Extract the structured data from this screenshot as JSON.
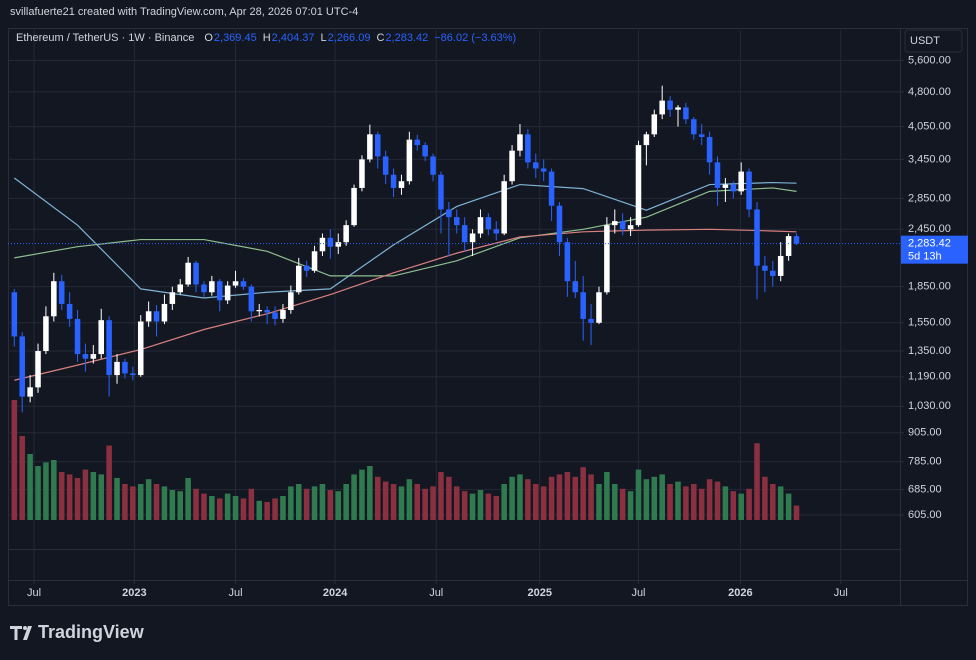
{
  "header": {
    "credit": "svillafuerte21 created with TradingView.com, Apr 28, 2026 07:01 UTC-4",
    "symbol": "Ethereum / TetherUS · 1W · Binance",
    "ohlc": [
      {
        "key": "O",
        "label": "2,369.45"
      },
      {
        "key": "H",
        "label": "2,404.37"
      },
      {
        "key": "L",
        "label": "2,266.09"
      },
      {
        "key": "C",
        "label": "2,283.42"
      }
    ],
    "change": "−86.02 (−3.63%)",
    "currency": "USDT"
  },
  "footer": {
    "logo": "TradingView"
  },
  "chart_data": {
    "type": "candlestick",
    "log_scale": true,
    "grid": true,
    "up_color": "#ffffff",
    "down_color": "#2962ff",
    "volume_up_color": "#2f7a4e",
    "volume_down_color": "#8a3040",
    "xlim": [
      -0.8,
      112.1
    ],
    "ylim": [
      440,
      6500
    ],
    "xticks": [
      {
        "value": 2.5,
        "label": "Jul"
      },
      {
        "value": 15.2,
        "label": "2023"
      },
      {
        "value": 28,
        "label": "Jul"
      },
      {
        "value": 40.6,
        "label": "2024"
      },
      {
        "value": 53.4,
        "label": "Jul"
      },
      {
        "value": 66.5,
        "label": "2025"
      },
      {
        "value": 79,
        "label": "Jul"
      },
      {
        "value": 91.9,
        "label": "2026"
      },
      {
        "value": 104.6,
        "label": "Jul"
      }
    ],
    "yticks": [
      {
        "value": 5600,
        "label": "5,600.00"
      },
      {
        "value": 4800,
        "label": "4,800.00"
      },
      {
        "value": 4050,
        "label": "4,050.00"
      },
      {
        "value": 3450,
        "label": "3,450.00"
      },
      {
        "value": 2850,
        "label": "2,850.00"
      },
      {
        "value": 2450,
        "label": "2,450.00"
      },
      {
        "value": 1850,
        "label": "1,850.00"
      },
      {
        "value": 1550,
        "label": "1,550.00"
      },
      {
        "value": 1350,
        "label": "1,350.00"
      },
      {
        "value": 1190,
        "label": "1,190.00"
      },
      {
        "value": 1030,
        "label": "1,030.00"
      },
      {
        "value": 905,
        "label": "905.00"
      },
      {
        "value": 785,
        "label": "785.00"
      },
      {
        "value": 685,
        "label": "685.00"
      },
      {
        "value": 605,
        "label": "605.00"
      }
    ],
    "price_marker": {
      "value": 2283.42,
      "label": "2,283.42",
      "countdown": "5d 13h",
      "color": "#2962ff"
    },
    "open": [
      1800,
      1450,
      1080,
      1130,
      1350,
      1600,
      1900,
      1700,
      1580,
      1330,
      1300,
      1330,
      1570,
      1200,
      1280,
      1210,
      1200,
      1560,
      1640,
      1560,
      1700,
      1800,
      1870,
      2080,
      1870,
      1800,
      1900,
      1730,
      1860,
      1900,
      1850,
      1640,
      1650,
      1630,
      1580,
      1650,
      1800,
      2050,
      2000,
      2200,
      2350,
      2250,
      2300,
      2500,
      3000,
      3450,
      3900,
      3500,
      3200,
      3000,
      3100,
      3800,
      3700,
      3500,
      3200,
      2700,
      2600,
      2500,
      2300,
      2400,
      2600,
      2450,
      2400,
      3100,
      3600,
      3900,
      3400,
      3300,
      3250,
      2750,
      2300,
      1900,
      1800,
      1580,
      1550,
      1800,
      2500,
      2550,
      2450,
      2500,
      3700,
      3900,
      4300,
      4600,
      4400,
      4450,
      4200,
      3900,
      3850,
      3400,
      3000,
      3050,
      2950,
      3250,
      2700,
      2050,
      2000,
      1950,
      2150,
      2369.45
    ],
    "high": [
      1830,
      1480,
      1200,
      1400,
      1680,
      1980,
      1960,
      1800,
      1650,
      1400,
      1390,
      1660,
      1600,
      1330,
      1300,
      1250,
      1610,
      1720,
      1690,
      1780,
      1850,
      1920,
      2140,
      2100,
      1900,
      1950,
      1920,
      1900,
      2000,
      1930,
      1870,
      1700,
      1680,
      1680,
      1700,
      1860,
      2130,
      2100,
      2260,
      2400,
      2450,
      2400,
      2560,
      3050,
      3520,
      4090,
      3950,
      3600,
      3300,
      3200,
      3950,
      3890,
      3750,
      3550,
      3250,
      2800,
      2700,
      2600,
      2450,
      2700,
      2650,
      2550,
      3200,
      3700,
      4100,
      4000,
      3550,
      3450,
      3300,
      2800,
      2350,
      2100,
      1950,
      1700,
      1850,
      2600,
      2700,
      2650,
      2600,
      3780,
      3950,
      4400,
      4950,
      4700,
      4500,
      4550,
      4250,
      4100,
      3950,
      3500,
      3150,
      3100,
      3400,
      3300,
      2800,
      2150,
      2100,
      2300,
      2400,
      2404.37
    ],
    "low": [
      1380,
      1000,
      1050,
      1100,
      1330,
      1560,
      1650,
      1520,
      1280,
      1220,
      1270,
      1300,
      1080,
      1150,
      1180,
      1170,
      1190,
      1520,
      1450,
      1540,
      1650,
      1780,
      1850,
      1800,
      1760,
      1770,
      1640,
      1700,
      1840,
      1820,
      1560,
      1600,
      1540,
      1530,
      1550,
      1620,
      1780,
      1940,
      1980,
      2150,
      2120,
      2170,
      2260,
      2480,
      2950,
      3400,
      3300,
      3060,
      2870,
      2900,
      3050,
      3600,
      3420,
      3100,
      2400,
      2150,
      2400,
      2200,
      2150,
      2350,
      2380,
      2320,
      2380,
      3050,
      3500,
      3300,
      3150,
      3100,
      2550,
      2150,
      1760,
      1750,
      1420,
      1390,
      1540,
      1780,
      2400,
      2380,
      2370,
      2480,
      3350,
      3850,
      4200,
      4250,
      4050,
      4100,
      3800,
      3700,
      3200,
      2750,
      2800,
      2850,
      2900,
      2600,
      1740,
      1800,
      1850,
      1900,
      2100,
      2266.09
    ],
    "close": [
      1450,
      1080,
      1130,
      1350,
      1600,
      1900,
      1700,
      1580,
      1330,
      1300,
      1330,
      1570,
      1200,
      1280,
      1210,
      1200,
      1560,
      1640,
      1560,
      1700,
      1800,
      1870,
      2080,
      1870,
      1800,
      1900,
      1730,
      1860,
      1900,
      1850,
      1640,
      1650,
      1630,
      1580,
      1650,
      1800,
      2050,
      2000,
      2200,
      2350,
      2250,
      2300,
      2500,
      3000,
      3450,
      3900,
      3500,
      3200,
      3000,
      3100,
      3800,
      3700,
      3500,
      3200,
      2700,
      2600,
      2500,
      2300,
      2400,
      2600,
      2450,
      2400,
      3100,
      3600,
      3900,
      3400,
      3300,
      3250,
      2750,
      2300,
      1900,
      1800,
      1580,
      1550,
      1800,
      2500,
      2550,
      2450,
      2500,
      3700,
      3900,
      4300,
      4600,
      4400,
      4450,
      4200,
      3900,
      3850,
      3400,
      3000,
      3050,
      2950,
      3250,
      2700,
      2050,
      2000,
      1950,
      2150,
      2369.45,
      2283.42
    ],
    "volume": [
      100,
      70,
      55,
      45,
      48,
      50,
      40,
      38,
      35,
      42,
      40,
      38,
      62,
      35,
      30,
      28,
      30,
      34,
      30,
      28,
      25,
      24,
      35,
      26,
      22,
      20,
      18,
      22,
      20,
      18,
      26,
      16,
      15,
      18,
      20,
      28,
      30,
      26,
      28,
      30,
      25,
      24,
      30,
      38,
      42,
      45,
      36,
      32,
      30,
      28,
      34,
      30,
      26,
      28,
      40,
      36,
      28,
      24,
      22,
      25,
      22,
      20,
      30,
      36,
      38,
      34,
      30,
      28,
      36,
      38,
      40,
      36,
      44,
      38,
      30,
      40,
      30,
      26,
      24,
      42,
      34,
      36,
      38,
      30,
      32,
      28,
      30,
      26,
      34,
      32,
      28,
      24,
      22,
      26,
      64,
      36,
      30,
      28,
      22,
      12
    ],
    "averages": [
      {
        "color": "#7fb3d5",
        "x": [
          0,
          8,
          16,
          24,
          32,
          40,
          48,
          56,
          64,
          72,
          80,
          88,
          96,
          99
        ],
        "values": [
          3150,
          2500,
          1830,
          1750,
          1800,
          1830,
          2270,
          2740,
          3050,
          2990,
          2690,
          3050,
          3080,
          3070
        ]
      },
      {
        "color": "#8fbf8f",
        "x": [
          0,
          8,
          16,
          24,
          32,
          40,
          48,
          56,
          64,
          72,
          80,
          88,
          96,
          99
        ],
        "values": [
          2130,
          2250,
          2330,
          2330,
          2200,
          1950,
          1950,
          2100,
          2350,
          2450,
          2600,
          2950,
          3000,
          2950
        ]
      },
      {
        "color": "#d9817f",
        "x": [
          0,
          8,
          16,
          24,
          32,
          40,
          48,
          56,
          64,
          72,
          80,
          88,
          96,
          99
        ],
        "values": [
          1170,
          1260,
          1360,
          1500,
          1620,
          1780,
          1980,
          2180,
          2360,
          2420,
          2440,
          2450,
          2430,
          2420
        ]
      }
    ]
  }
}
